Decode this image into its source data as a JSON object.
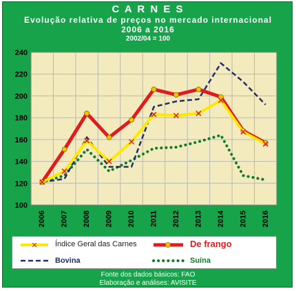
{
  "header": {
    "title": "C A R N E S",
    "subtitle": "Evolução relativa de preços no mercado internacional",
    "period": "2006 a 2016",
    "base": "2002/04 = 100"
  },
  "footer": {
    "source": "Fonte dos dados básicos: FAO",
    "credit": "Elaboração e análises: AVISITE"
  },
  "colors": {
    "frame": "#17a34a",
    "plot_bg": "#f3ebbd",
    "indice": "#ffe800",
    "frango": "#e01b1b",
    "bovina": "#1f2f6e",
    "suina": "#0e7a2a"
  },
  "chart_data": {
    "type": "line",
    "title": "C A R N E S",
    "x": [
      "2006",
      "2007",
      "2008",
      "2009",
      "2010",
      "2011",
      "2012",
      "2013",
      "2014",
      "2015",
      "2016"
    ],
    "ylim": [
      100,
      240
    ],
    "yticks": [
      "100",
      "120",
      "140",
      "160",
      "180",
      "200",
      "220",
      "240"
    ],
    "grid": true,
    "legend_position": "bottom",
    "series": [
      {
        "name": "Índice Geral das Carnes",
        "values": [
          121,
          131,
          159,
          140,
          158,
          183,
          182,
          184,
          196,
          167,
          156
        ]
      },
      {
        "name": "De frango",
        "values": [
          121,
          151,
          184,
          162,
          178,
          206,
          201,
          206,
          199,
          168,
          157
        ]
      },
      {
        "name": "Bovina",
        "values": [
          121,
          124,
          162,
          135,
          135,
          190,
          195,
          197,
          230,
          213,
          192
        ]
      },
      {
        "name": "Suína",
        "values": [
          121,
          127,
          151,
          131,
          141,
          152,
          153,
          158,
          164,
          127,
          123
        ]
      }
    ]
  }
}
